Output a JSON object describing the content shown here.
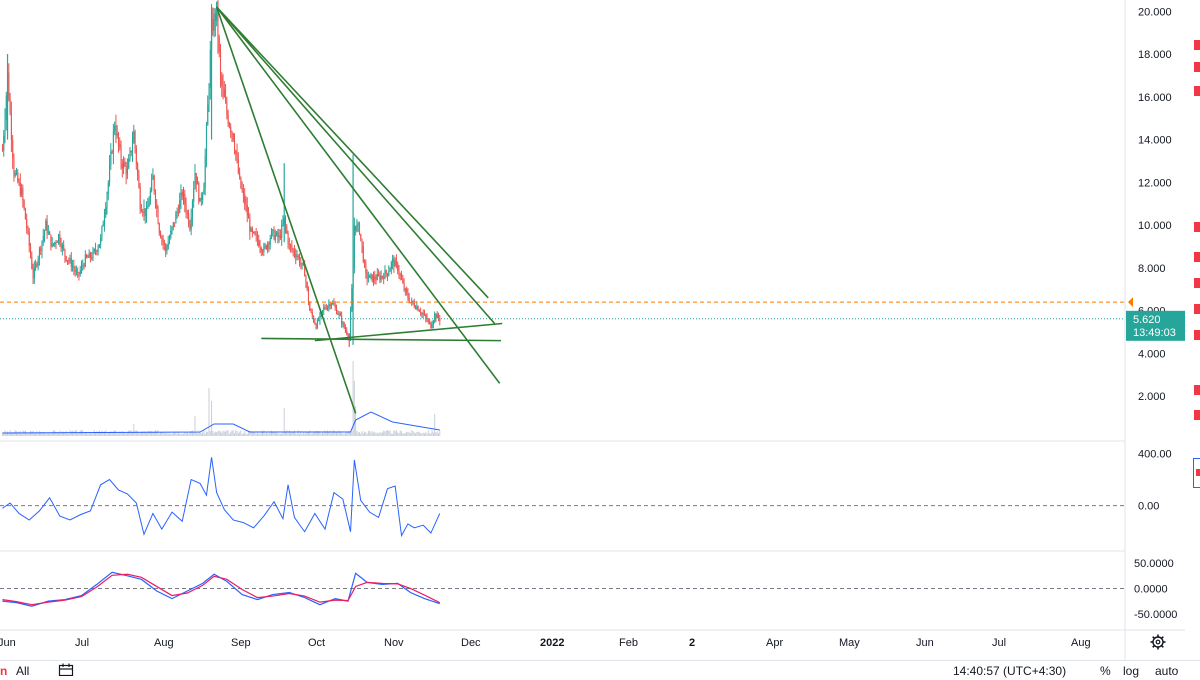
{
  "colors": {
    "up": "#26a69a",
    "down": "#ef5350",
    "trendline": "#2e7d32",
    "volume_ma": "#2962ff",
    "cci": "#2962ff",
    "macd": "#2962ff",
    "signal": "#e91e63",
    "price_line": "#26a69a",
    "dashed_level": "#f57c00",
    "price_label_bg": "#26a69a",
    "axis_text": "#131722"
  },
  "chart_data": [
    {
      "type": "candlestick",
      "price_axis_ticks": [
        "20.000",
        "18.000",
        "16.000",
        "14.000",
        "12.000",
        "10.000",
        "8.000",
        "6.000",
        "4.000",
        "2.000"
      ],
      "ylim": [
        0,
        20.2
      ],
      "time_axis_labels": [
        "Jun",
        "Jul",
        "Aug",
        "Sep",
        "Oct",
        "Nov",
        "Dec",
        "2022",
        "Feb",
        "2",
        "Apr",
        "May",
        "Jun",
        "Jul",
        "Aug"
      ],
      "last_price": "5.620",
      "countdown": "13:49:03",
      "dashed_level": 6.4,
      "trendlines": [
        {
          "from": [
            "2021-11-14",
            20.2
          ],
          "to": [
            "2022-03-03",
            1.2
          ]
        },
        {
          "from": [
            "2021-11-14",
            20.2
          ],
          "to": [
            "2022-06-24",
            2.6
          ]
        },
        {
          "from": [
            "2021-11-14",
            20.2
          ],
          "to": [
            "2022-06-20",
            5.4
          ]
        },
        {
          "from": [
            "2021-11-14",
            20.2
          ],
          "to": [
            "2022-06-15",
            6.6
          ]
        },
        {
          "from": [
            "2021-12-19",
            4.7
          ],
          "to": [
            "2022-06-25",
            4.6
          ]
        },
        {
          "from": [
            "2022-01-30",
            4.6
          ],
          "to": [
            "2022-06-26",
            5.4
          ]
        }
      ],
      "price_path": [
        [
          "2021-05-30",
          13.5
        ],
        [
          "2021-06-03",
          17.0
        ],
        [
          "2021-06-08",
          12.5
        ],
        [
          "2021-06-14",
          11.5
        ],
        [
          "2021-06-19",
          9.5
        ],
        [
          "2021-06-23",
          7.6
        ],
        [
          "2021-06-28",
          8.8
        ],
        [
          "2021-07-03",
          10.0
        ],
        [
          "2021-07-08",
          9.0
        ],
        [
          "2021-07-13",
          9.5
        ],
        [
          "2021-07-18",
          8.6
        ],
        [
          "2021-07-23",
          8.2
        ],
        [
          "2021-07-28",
          7.6
        ],
        [
          "2021-08-03",
          8.4
        ],
        [
          "2021-08-09",
          8.6
        ],
        [
          "2021-08-15",
          9.3
        ],
        [
          "2021-08-21",
          12.0
        ],
        [
          "2021-08-26",
          14.8
        ],
        [
          "2021-08-31",
          13.0
        ],
        [
          "2021-09-05",
          12.5
        ],
        [
          "2021-09-10",
          14.3
        ],
        [
          "2021-09-15",
          11.0
        ],
        [
          "2021-09-20",
          10.5
        ],
        [
          "2021-09-25",
          12.2
        ],
        [
          "2021-09-30",
          9.8
        ],
        [
          "2021-10-05",
          8.8
        ],
        [
          "2021-10-12",
          10.2
        ],
        [
          "2021-10-18",
          11.5
        ],
        [
          "2021-10-24",
          10.0
        ],
        [
          "2021-10-28",
          12.5
        ],
        [
          "2021-11-01",
          11.0
        ],
        [
          "2021-11-04",
          12.0
        ],
        [
          "2021-11-07",
          15.5
        ],
        [
          "2021-11-10",
          19.2
        ],
        [
          "2021-11-14",
          20.0
        ],
        [
          "2021-11-17",
          16.8
        ],
        [
          "2021-11-22",
          15.2
        ],
        [
          "2021-11-27",
          14.2
        ],
        [
          "2021-12-02",
          12.0
        ],
        [
          "2021-12-07",
          10.8
        ],
        [
          "2021-12-11",
          9.6
        ],
        [
          "2021-12-16",
          9.3
        ],
        [
          "2021-12-21",
          8.8
        ],
        [
          "2021-12-27",
          9.6
        ],
        [
          "2022-01-02",
          9.4
        ],
        [
          "2022-01-06",
          10.2
        ],
        [
          "2022-01-10",
          9.0
        ],
        [
          "2022-01-16",
          8.6
        ],
        [
          "2022-01-22",
          7.8
        ],
        [
          "2022-01-26",
          6.0
        ],
        [
          "2022-01-31",
          5.3
        ],
        [
          "2022-02-06",
          6.1
        ],
        [
          "2022-02-12",
          6.4
        ],
        [
          "2022-02-18",
          5.8
        ],
        [
          "2022-02-22",
          5.2
        ],
        [
          "2022-02-26",
          4.8
        ],
        [
          "2022-03-01",
          8.0
        ],
        [
          "2022-03-02",
          10.0
        ],
        [
          "2022-03-06",
          9.8
        ],
        [
          "2022-03-11",
          7.6
        ],
        [
          "2022-03-17",
          7.5
        ],
        [
          "2022-03-23",
          7.6
        ],
        [
          "2022-03-28",
          7.8
        ],
        [
          "2022-04-01",
          8.3
        ],
        [
          "2022-04-05",
          8.0
        ],
        [
          "2022-04-10",
          7.0
        ],
        [
          "2022-04-15",
          6.4
        ],
        [
          "2022-04-20",
          6.2
        ],
        [
          "2022-04-25",
          5.8
        ],
        [
          "2022-05-01",
          5.3
        ],
        [
          "2022-05-04",
          5.8
        ],
        [
          "2022-05-08",
          5.6
        ]
      ]
    },
    {
      "type": "line",
      "name": "",
      "axis_ticks": [
        "400.00",
        "0.00"
      ],
      "ylim": [
        -340,
        480
      ],
      "zero_line": 0,
      "x": [
        "2021-05-30",
        "2021-06-05",
        "2021-06-12",
        "2021-06-20",
        "2021-06-28",
        "2021-07-06",
        "2021-07-14",
        "2021-07-22",
        "2021-07-30",
        "2021-08-07",
        "2021-08-15",
        "2021-08-22",
        "2021-08-29",
        "2021-09-05",
        "2021-09-12",
        "2021-09-18",
        "2021-09-25",
        "2021-10-02",
        "2021-10-10",
        "2021-10-18",
        "2021-10-25",
        "2021-11-01",
        "2021-11-06",
        "2021-11-10",
        "2021-11-14",
        "2021-11-20",
        "2021-11-27",
        "2021-12-05",
        "2021-12-13",
        "2021-12-21",
        "2021-12-29",
        "2022-01-05",
        "2022-01-09",
        "2022-01-14",
        "2022-01-22",
        "2022-01-30",
        "2022-02-07",
        "2022-02-14",
        "2022-02-21",
        "2022-02-27",
        "2022-03-02",
        "2022-03-07",
        "2022-03-14",
        "2022-03-21",
        "2022-03-28",
        "2022-04-03",
        "2022-04-08",
        "2022-04-13",
        "2022-04-18",
        "2022-04-25",
        "2022-05-01",
        "2022-05-08"
      ],
      "values": [
        -20,
        20,
        -60,
        -110,
        -40,
        60,
        -80,
        -110,
        -70,
        -40,
        160,
        200,
        120,
        90,
        20,
        -220,
        -60,
        -180,
        -50,
        -120,
        200,
        170,
        80,
        370,
        100,
        -30,
        -110,
        -130,
        -170,
        -80,
        30,
        -100,
        160,
        -90,
        -200,
        -60,
        -180,
        100,
        50,
        -200,
        350,
        40,
        -50,
        -90,
        130,
        150,
        -230,
        -140,
        -170,
        -150,
        -210,
        -60
      ]
    },
    {
      "type": "line",
      "axis_ticks": [
        "50.0000",
        "0.0000",
        "-50.0000"
      ],
      "ylim": [
        -80,
        70
      ],
      "zero_line": 0,
      "x": [
        "2021-05-30",
        "2021-06-10",
        "2021-06-22",
        "2021-07-05",
        "2021-07-18",
        "2021-07-31",
        "2021-08-12",
        "2021-08-24",
        "2021-09-05",
        "2021-09-16",
        "2021-09-28",
        "2021-10-10",
        "2021-10-22",
        "2021-11-03",
        "2021-11-12",
        "2021-11-22",
        "2021-12-04",
        "2021-12-16",
        "2021-12-28",
        "2022-01-10",
        "2022-01-22",
        "2022-02-03",
        "2022-02-15",
        "2022-02-25",
        "2022-03-03",
        "2022-03-12",
        "2022-03-24",
        "2022-04-05",
        "2022-04-15",
        "2022-04-26",
        "2022-05-08"
      ],
      "series": [
        {
          "values": [
            -25,
            -28,
            -35,
            -25,
            -22,
            -14,
            8,
            32,
            25,
            18,
            -5,
            -20,
            -5,
            10,
            28,
            14,
            -12,
            -22,
            -12,
            -8,
            -18,
            -32,
            -20,
            -25,
            30,
            12,
            8,
            10,
            -8,
            -20,
            -30
          ]
        },
        {
          "values": [
            -22,
            -26,
            -32,
            -27,
            -23,
            -16,
            3,
            26,
            28,
            22,
            4,
            -14,
            -9,
            6,
            24,
            18,
            -2,
            -18,
            -15,
            -10,
            -15,
            -27,
            -23,
            -24,
            4,
            12,
            10,
            9,
            0,
            -13,
            -28
          ]
        }
      ]
    }
  ],
  "bottom_bar": {
    "range_label": "All",
    "calendar_icon": "calendar-icon",
    "time": "14:40:57 (UTC+4:30)",
    "percent_label": "%",
    "log_label": "log",
    "auto_label": "auto"
  },
  "gear_icon": "gear-icon"
}
